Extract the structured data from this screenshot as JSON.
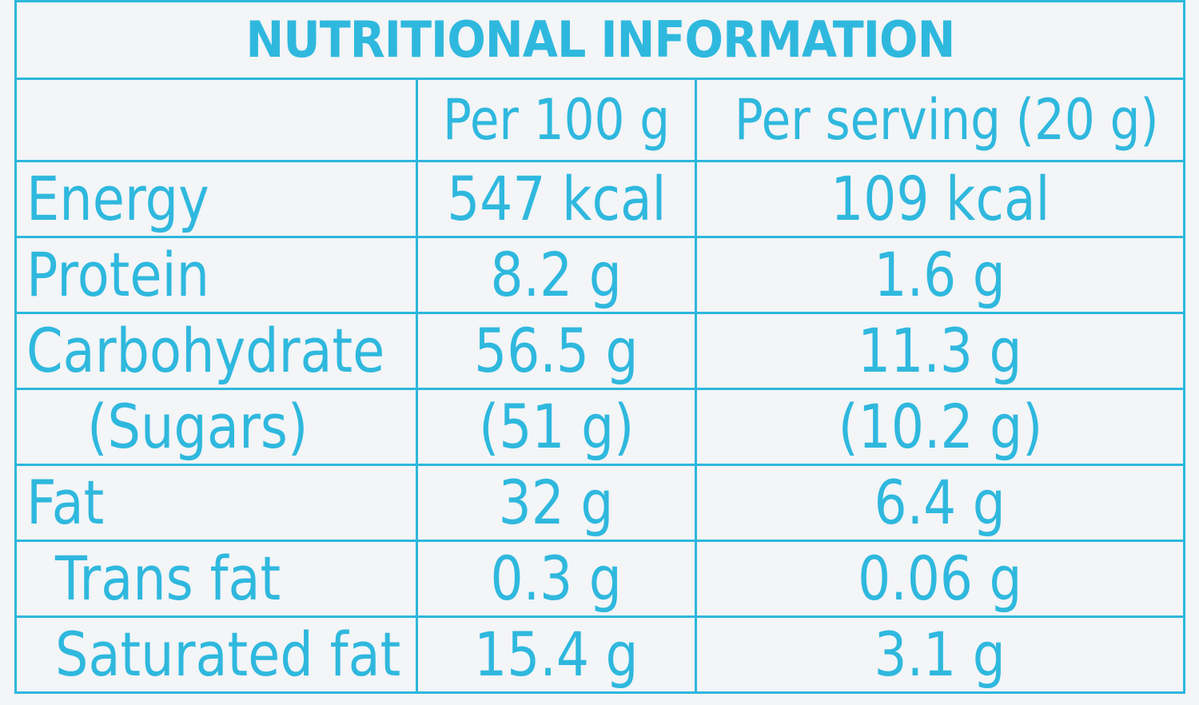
{
  "title": "NUTRITIONAL INFORMATION",
  "columns": {
    "per_100g": "Per 100 g",
    "per_serving": "Per serving (20 g)"
  },
  "rows": [
    {
      "name": "Energy",
      "per_100g": "547 kcal",
      "per_serving": "109 kcal",
      "indent": 0
    },
    {
      "name": "Protein",
      "per_100g": "8.2 g",
      "per_serving": "1.6 g",
      "indent": 0
    },
    {
      "name": "Carbohydrate",
      "per_100g": "56.5 g",
      "per_serving": "11.3 g",
      "indent": 0
    },
    {
      "name": "(Sugars)",
      "per_100g": "(51 g)",
      "per_serving": "(10.2 g)",
      "indent": 1
    },
    {
      "name": "Fat",
      "per_100g": "32 g",
      "per_serving": "6.4 g",
      "indent": 0
    },
    {
      "name": "Trans fat",
      "per_100g": "0.3 g",
      "per_serving": "0.06 g",
      "indent": 2
    },
    {
      "name": "Saturated fat",
      "per_100g": "15.4 g",
      "per_serving": "3.1 g",
      "indent": 2
    }
  ],
  "colors": {
    "ink": "#2fb8de",
    "rule": "#2db7dd",
    "paper": "#f3f5f7"
  }
}
